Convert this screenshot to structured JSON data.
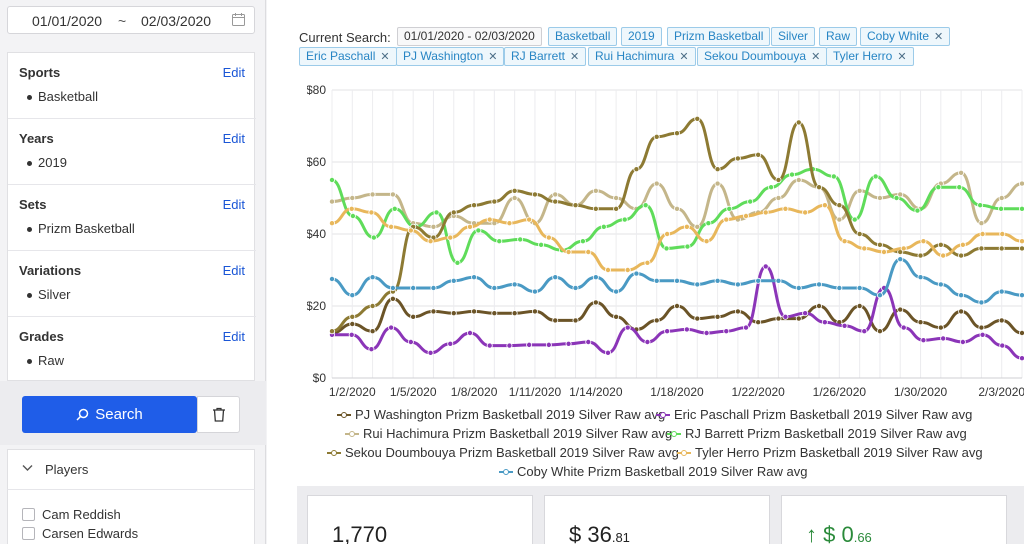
{
  "sidebar": {
    "date_from": "01/01/2020",
    "date_sep": "~",
    "date_to": "02/03/2020",
    "filters": [
      {
        "title": "Sports",
        "edit": "Edit",
        "item": "Basketball"
      },
      {
        "title": "Years",
        "edit": "Edit",
        "item": "2019"
      },
      {
        "title": "Sets",
        "edit": "Edit",
        "item": "Prizm Basketball"
      },
      {
        "title": "Variations",
        "edit": "Edit",
        "item": "Silver"
      },
      {
        "title": "Grades",
        "edit": "Edit",
        "item": "Raw"
      }
    ],
    "search_label": "Search",
    "players_title": "Players",
    "players": [
      "Cam Reddish",
      "Carsen Edwards"
    ]
  },
  "main": {
    "current_search_label": "Current Search:",
    "tags": [
      {
        "text": "01/01/2020 - 02/03/2020",
        "type": "date",
        "removable": false
      },
      {
        "text": "Basketball",
        "removable": false
      },
      {
        "text": "2019",
        "removable": false
      },
      {
        "text": "Prizm Basketball",
        "removable": false
      },
      {
        "text": "Silver",
        "removable": false
      },
      {
        "text": "Raw",
        "removable": false
      },
      {
        "text": "Coby White",
        "removable": true
      },
      {
        "text": "Eric Paschall",
        "removable": true
      },
      {
        "text": "PJ Washington",
        "removable": true
      },
      {
        "text": "RJ Barrett",
        "removable": true
      },
      {
        "text": "Rui Hachimura",
        "removable": true
      },
      {
        "text": "Sekou Doumbouya",
        "removable": true
      },
      {
        "text": "Tyler Herro",
        "removable": true
      }
    ],
    "stats": [
      {
        "main": "1,770",
        "sub": ""
      },
      {
        "main": "$ 36",
        "sub": ".81"
      },
      {
        "main": "↑ $ 0",
        "sub": ".66",
        "up": true
      }
    ]
  },
  "chart_data": {
    "type": "line",
    "x_ticks": [
      "1/2/2020",
      "1/5/2020",
      "1/8/2020",
      "1/11/2020",
      "1/14/2020",
      "1/18/2020",
      "1/22/2020",
      "1/26/2020",
      "1/30/2020",
      "2/3/2020"
    ],
    "y_ticks": [
      "$0",
      "$20",
      "$40",
      "$60",
      "$80"
    ],
    "ylim": [
      0,
      80
    ],
    "x_range": [
      "1/1/2020",
      "2/3/2020"
    ],
    "grid": true,
    "legend_position": "bottom",
    "series": [
      {
        "name": "PJ Washington Prizm Basketball 2019 Silver Raw avg",
        "color": "#6b5427",
        "values": [
          12.5,
          15,
          13,
          22,
          17,
          18.5,
          18,
          18.5,
          18,
          18,
          18.5,
          16,
          16,
          21,
          17,
          13.5,
          16,
          20,
          16.5,
          17,
          18.5,
          15.5,
          16.5,
          16.5,
          20,
          15.5,
          20,
          13,
          19,
          15.5,
          14,
          18.5,
          14,
          16,
          12.5
        ]
      },
      {
        "name": "Eric Paschall Prizm Basketball 2019 Silver Raw avg",
        "color": "#8b35b8",
        "values": [
          12,
          12,
          8,
          14,
          10,
          7,
          9.5,
          12.5,
          9,
          9,
          9.2,
          9.2,
          9.5,
          10,
          7,
          14,
          10,
          13,
          13.5,
          12.5,
          13,
          14,
          31,
          17,
          18,
          15.5,
          14.5,
          13,
          25,
          14,
          10.5,
          11,
          10,
          12,
          9,
          5.5
        ]
      },
      {
        "name": "Rui Hachimura Prizm Basketball 2019 Silver Raw avg",
        "color": "#c4b68a",
        "values": [
          49,
          50,
          51,
          51,
          43,
          42,
          45,
          43,
          43,
          50,
          43,
          51,
          48,
          52,
          50,
          47,
          54,
          47,
          42,
          54,
          44,
          46,
          50,
          55,
          53,
          44,
          52,
          50,
          51,
          47,
          54,
          57,
          43,
          50,
          54
        ]
      },
      {
        "name": "RJ Barrett Prizm Basketball 2019 Silver Raw avg",
        "color": "#5fdc5a",
        "values": [
          55,
          45,
          39,
          47,
          42,
          46,
          32,
          41,
          38,
          38.5,
          37,
          35.5,
          38,
          42,
          44,
          48,
          36,
          36.5,
          43,
          47,
          49,
          53,
          56.5,
          58,
          56,
          44,
          56,
          50,
          46.5,
          53,
          53,
          48,
          47,
          47
        ]
      },
      {
        "name": "Sekou Doumbouya Prizm Basketball 2019 Silver Raw avg",
        "color": "#8d7a33",
        "values": [
          13,
          17,
          20,
          24,
          42,
          39,
          46,
          48,
          49,
          52,
          51,
          49,
          48,
          47,
          47,
          58,
          67,
          68,
          72,
          58,
          61,
          62,
          55,
          71,
          53,
          48,
          40,
          37,
          35,
          34,
          37,
          34,
          36,
          36,
          36
        ]
      },
      {
        "name": "Tyler Herro Prizm Basketball 2019 Silver Raw avg",
        "color": "#e8b75b",
        "values": [
          43,
          47,
          46,
          42,
          41,
          38,
          39,
          42,
          44,
          43,
          44,
          39,
          35,
          35,
          30,
          30,
          32,
          40,
          42,
          38,
          44,
          45,
          46,
          47,
          46,
          48,
          38,
          36,
          35,
          36,
          38,
          34,
          37,
          40,
          40,
          38
        ]
      },
      {
        "name": "Coby White Prizm Basketball 2019 Silver Raw avg",
        "color": "#4a9ac4",
        "values": [
          27.5,
          23,
          28,
          25,
          25,
          25,
          27,
          28,
          25,
          26,
          24,
          28,
          25,
          28,
          24,
          29,
          27,
          27,
          26,
          27,
          26,
          27,
          27,
          25,
          26,
          25,
          25,
          23,
          33,
          28,
          26,
          23,
          21,
          24,
          23
        ]
      }
    ]
  }
}
